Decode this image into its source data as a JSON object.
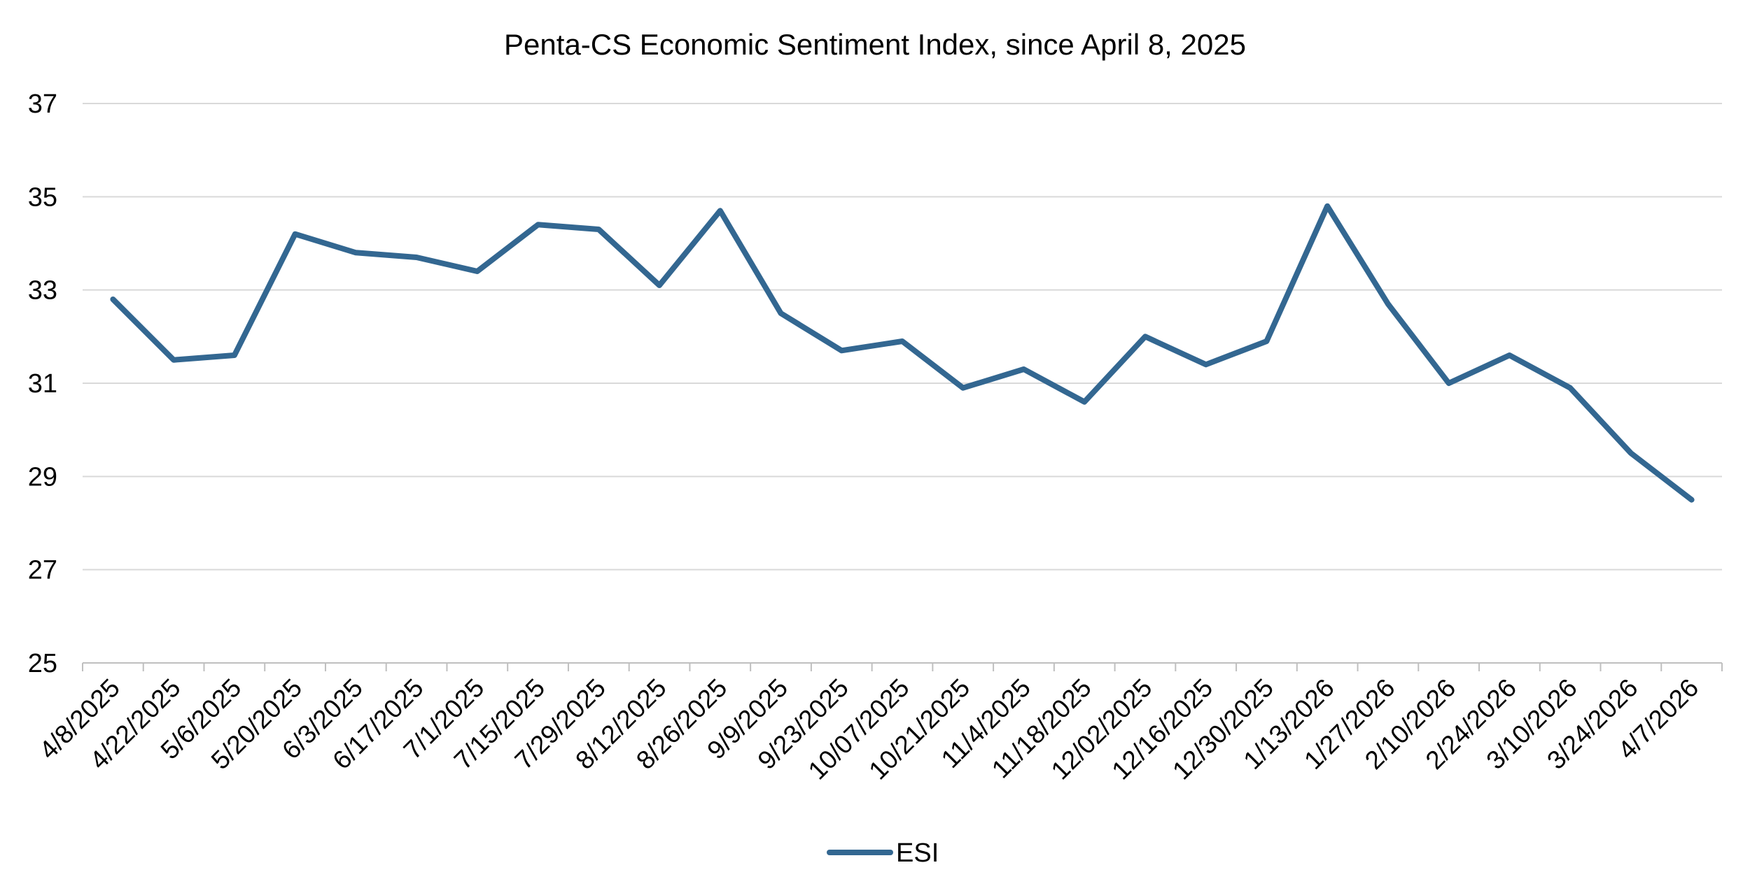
{
  "chart_data": {
    "type": "line",
    "title": "Penta-CS Economic Sentiment Index, since April 8, 2025",
    "xlabel": "",
    "ylabel": "",
    "ylim": [
      25,
      37
    ],
    "yticks": [
      25,
      27,
      29,
      31,
      33,
      35,
      37
    ],
    "grid": true,
    "legend_position": "bottom",
    "categories": [
      "4/8/2025",
      "4/22/2025",
      "5/6/2025",
      "5/20/2025",
      "6/3/2025",
      "6/17/2025",
      "7/1/2025",
      "7/15/2025",
      "7/29/2025",
      "8/12/2025",
      "8/26/2025",
      "9/9/2025",
      "9/23/2025",
      "10/07/2025",
      "10/21/2025",
      "11/4/2025",
      "11/18/2025",
      "12/02/2025",
      "12/16/2025",
      "12/30/2025",
      "1/13/2026",
      "1/27/2026",
      "2/10/2026",
      "2/24/2026",
      "3/10/2026",
      "3/24/2026",
      "4/7/2026"
    ],
    "series": [
      {
        "name": "ESI",
        "color": "#336791",
        "values": [
          32.8,
          31.5,
          31.6,
          34.2,
          33.8,
          33.7,
          33.4,
          34.4,
          34.3,
          33.1,
          34.7,
          32.5,
          31.7,
          31.9,
          30.9,
          31.3,
          30.6,
          32.0,
          31.4,
          31.9,
          34.8,
          32.7,
          31.0,
          31.6,
          30.9,
          29.5,
          28.5
        ]
      }
    ],
    "colors": {
      "grid": "#d9d9d9",
      "axis": "#bfbfbf",
      "text": "#000000"
    }
  }
}
